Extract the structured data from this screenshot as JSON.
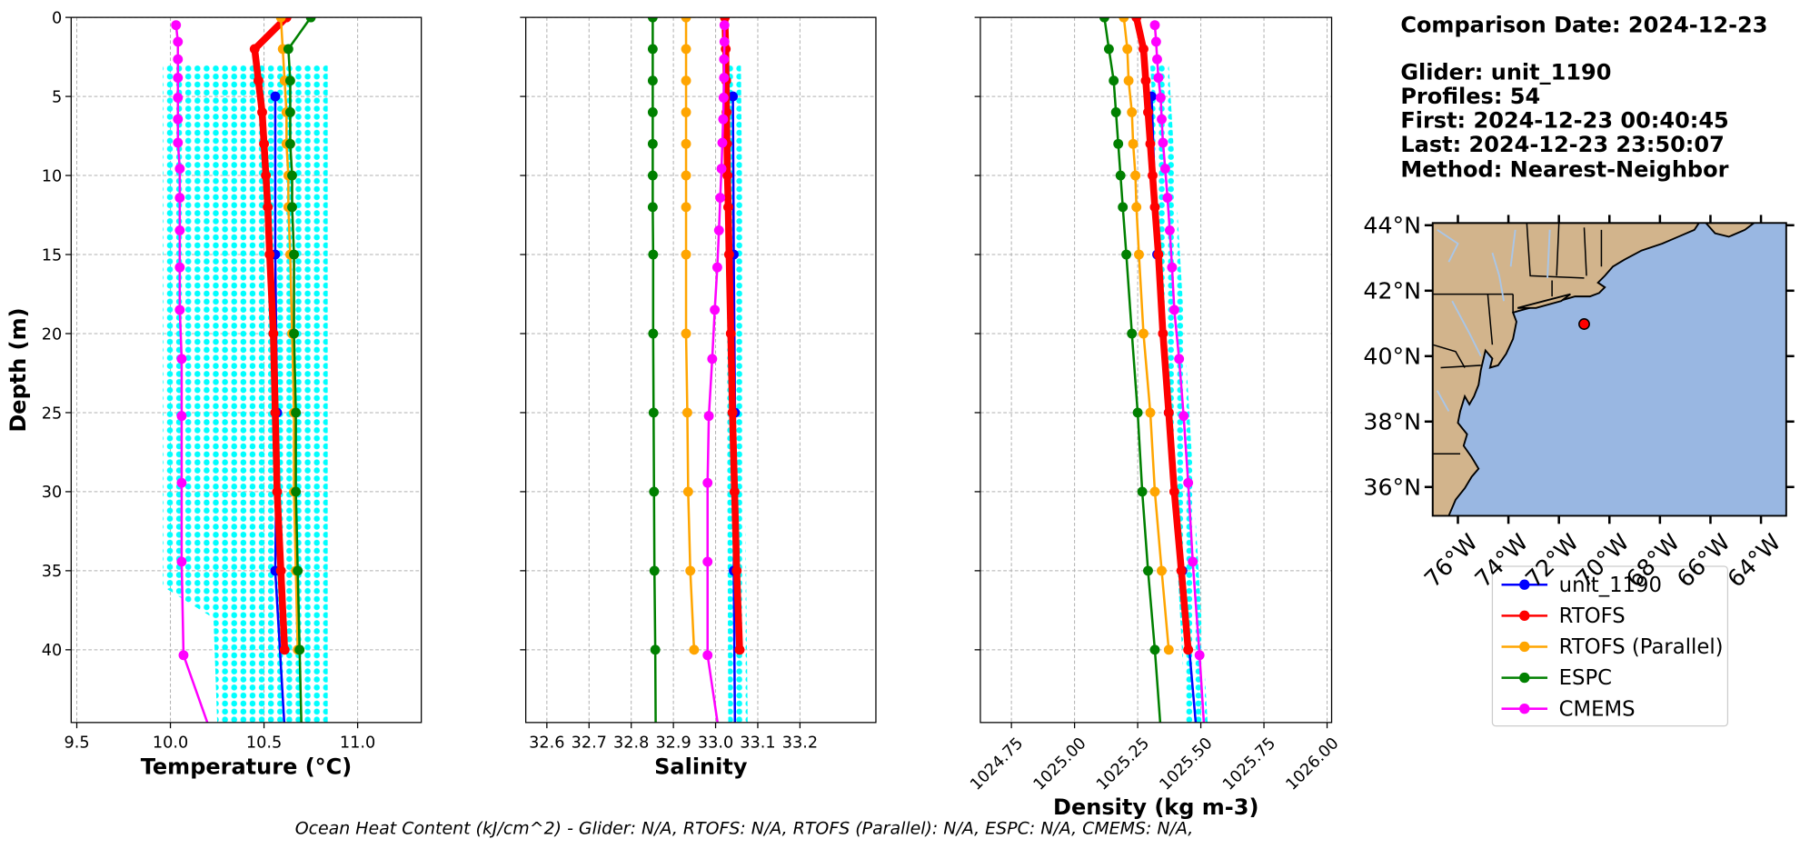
{
  "chart_data": [
    {
      "type": "line",
      "xlabel": "Temperature (°C)",
      "ylabel": "Depth (m)",
      "ytick_labels": true,
      "invert_y": true,
      "grid": true,
      "xlim": [
        9.47,
        11.34
      ],
      "xticks": [
        9.5,
        {
          "value": 10,
          "label": "10.0"
        },
        10.5,
        {
          "value": 11,
          "label": "11.0"
        }
      ],
      "ylim": [
        0,
        44.6
      ],
      "yticks": [
        0,
        5,
        10,
        15,
        20,
        25,
        30,
        35,
        40
      ],
      "cloud": {
        "color": "#00ffff",
        "depth": [
          3,
          36,
          38,
          44.6
        ],
        "min": [
          9.96,
          9.96,
          10.23,
          10.25
        ],
        "max": [
          10.84,
          10.84,
          10.84,
          10.84
        ]
      },
      "series": [
        {
          "name": "unit_1190",
          "color": "#0000ff",
          "linewidth": 2,
          "depth": [
            5,
            15,
            25,
            35,
            45
          ],
          "values": [
            10.56,
            10.56,
            10.57,
            10.56,
            10.61
          ]
        },
        {
          "name": "RTOFS",
          "color": "#ff0000",
          "linewidth": 6,
          "depth": [
            0,
            2,
            4,
            6,
            8,
            10,
            12,
            15,
            20,
            25,
            30,
            35,
            40
          ],
          "values": [
            10.62,
            10.45,
            10.47,
            10.49,
            10.5,
            10.51,
            10.52,
            10.53,
            10.55,
            10.56,
            10.57,
            10.59,
            10.61
          ]
        },
        {
          "name": "RTOFS (Parallel)",
          "color": "#ffa500",
          "linewidth": 2,
          "depth": [
            0,
            2,
            4,
            6,
            8,
            10,
            12,
            15,
            20,
            25,
            30,
            35,
            40
          ],
          "values": [
            10.59,
            10.6,
            10.61,
            10.62,
            10.62,
            10.63,
            10.63,
            10.64,
            10.65,
            10.66,
            10.66,
            10.67,
            10.68
          ]
        },
        {
          "name": "ESPC",
          "color": "#008000",
          "linewidth": 2,
          "depth": [
            0,
            2,
            4,
            6,
            8,
            10,
            12,
            15,
            20,
            25,
            30,
            35,
            40,
            45
          ],
          "values": [
            10.75,
            10.63,
            10.64,
            10.64,
            10.64,
            10.65,
            10.65,
            10.66,
            10.66,
            10.67,
            10.67,
            10.68,
            10.69,
            10.7
          ]
        },
        {
          "name": "CMEMS",
          "color": "#ff00ff",
          "linewidth": 2,
          "depth": [
            0.49,
            1.54,
            2.65,
            3.82,
            5.08,
            6.44,
            7.93,
            9.57,
            11.41,
            13.47,
            15.81,
            18.5,
            21.6,
            25.21,
            29.44,
            34.43,
            40.34,
            47.37
          ],
          "values": [
            10.03,
            10.04,
            10.04,
            10.04,
            10.04,
            10.04,
            10.04,
            10.05,
            10.05,
            10.05,
            10.05,
            10.05,
            10.06,
            10.06,
            10.06,
            10.06,
            10.07,
            10.28
          ]
        }
      ]
    },
    {
      "type": "line",
      "xlabel": "Salinity",
      "ytick_labels": false,
      "invert_y": true,
      "grid": true,
      "xlim": [
        32.55,
        33.38
      ],
      "xticks": [
        32.6,
        32.7,
        32.8,
        32.9,
        {
          "value": 33,
          "label": "33.0"
        },
        33.1,
        33.2
      ],
      "ylim": [
        0,
        44.6
      ],
      "yticks": [
        0,
        5,
        10,
        15,
        20,
        25,
        30,
        35,
        40
      ],
      "cloud": {
        "color": "#00ffff",
        "depth": [
          3,
          44.6
        ],
        "min": [
          33.024,
          33.03
        ],
        "max": [
          33.06,
          33.076
        ]
      },
      "series": [
        {
          "name": "unit_1190",
          "color": "#0000ff",
          "linewidth": 2,
          "depth": [
            5,
            15,
            25,
            35,
            45
          ],
          "values": [
            33.041,
            33.043,
            33.046,
            33.043,
            33.046
          ]
        },
        {
          "name": "RTOFS",
          "color": "#ff0000",
          "linewidth": 6,
          "depth": [
            0,
            2,
            4,
            6,
            8,
            10,
            12,
            15,
            20,
            25,
            30,
            35,
            40
          ],
          "values": [
            33.022,
            33.024,
            33.025,
            33.026,
            33.027,
            33.028,
            33.03,
            33.032,
            33.036,
            33.04,
            33.045,
            33.05,
            33.057
          ]
        },
        {
          "name": "RTOFS (Parallel)",
          "color": "#ffa500",
          "linewidth": 2,
          "depth": [
            0,
            2,
            4,
            6,
            8,
            10,
            12,
            15,
            20,
            25,
            30,
            35,
            40
          ],
          "values": [
            32.93,
            32.93,
            32.93,
            32.93,
            32.93,
            32.93,
            32.93,
            32.93,
            32.93,
            32.933,
            32.935,
            32.94,
            32.949
          ]
        },
        {
          "name": "ESPC",
          "color": "#008000",
          "linewidth": 2,
          "depth": [
            0,
            2,
            4,
            6,
            8,
            10,
            12,
            15,
            20,
            25,
            30,
            35,
            40,
            45
          ],
          "values": [
            32.851,
            32.851,
            32.851,
            32.851,
            32.851,
            32.851,
            32.851,
            32.852,
            32.852,
            32.853,
            32.854,
            32.855,
            32.857,
            32.858
          ]
        },
        {
          "name": "CMEMS",
          "color": "#ff00ff",
          "linewidth": 2,
          "depth": [
            0.49,
            1.54,
            2.65,
            3.82,
            5.08,
            6.44,
            7.93,
            9.57,
            11.41,
            13.47,
            15.81,
            18.5,
            21.6,
            25.21,
            29.44,
            34.43,
            40.34,
            47.37
          ],
          "values": [
            33.021,
            33.021,
            33.02,
            33.02,
            33.019,
            33.018,
            33.016,
            33.014,
            33.011,
            33.008,
            33.004,
            32.998,
            32.992,
            32.984,
            32.981,
            32.981,
            32.981,
            33.02
          ]
        }
      ]
    },
    {
      "type": "line",
      "xlabel": "Density (kg m-3)",
      "ytick_labels": false,
      "invert_y": true,
      "grid": true,
      "xtick_rotation": 45,
      "xlim": [
        1024.627,
        1026.018
      ],
      "xticks": [
        1024.75,
        {
          "value": 1025,
          "label": "1025.00"
        },
        1025.25,
        {
          "value": 1025.5,
          "label": "1025.50"
        },
        1025.75,
        {
          "value": 1026,
          "label": "1026.00"
        }
      ],
      "ylim": [
        0,
        44.6
      ],
      "yticks": [
        0,
        5,
        10,
        15,
        20,
        25,
        30,
        35,
        40
      ],
      "cloud": {
        "color": "#00ffff",
        "depth": [
          3,
          44.6
        ],
        "min": [
          1025.3,
          1025.441
        ],
        "max": [
          1025.373,
          1025.527
        ]
      },
      "series": [
        {
          "name": "unit_1190",
          "color": "#0000ff",
          "linewidth": 2,
          "depth": [
            5,
            15,
            25,
            35,
            45
          ],
          "values": [
            1025.305,
            1025.327,
            1025.373,
            1025.427,
            1025.482
          ]
        },
        {
          "name": "RTOFS",
          "color": "#ff0000",
          "linewidth": 6,
          "depth": [
            0,
            2,
            4,
            6,
            8,
            10,
            12,
            15,
            20,
            25,
            30,
            35,
            40
          ],
          "values": [
            1025.245,
            1025.273,
            1025.282,
            1025.291,
            1025.3,
            1025.309,
            1025.318,
            1025.332,
            1025.35,
            1025.373,
            1025.395,
            1025.423,
            1025.45
          ]
        },
        {
          "name": "RTOFS (Parallel)",
          "color": "#ffa500",
          "linewidth": 2,
          "depth": [
            0,
            2,
            4,
            6,
            8,
            10,
            12,
            15,
            20,
            25,
            30,
            35,
            40
          ],
          "values": [
            1025.195,
            1025.209,
            1025.214,
            1025.227,
            1025.232,
            1025.241,
            1025.245,
            1025.255,
            1025.273,
            1025.3,
            1025.318,
            1025.345,
            1025.373
          ]
        },
        {
          "name": "ESPC",
          "color": "#008000",
          "linewidth": 2,
          "depth": [
            0,
            2,
            4,
            6,
            8,
            10,
            12,
            15,
            20,
            25,
            30,
            35,
            40,
            45
          ],
          "values": [
            1025.118,
            1025.136,
            1025.155,
            1025.164,
            1025.173,
            1025.182,
            1025.191,
            1025.205,
            1025.227,
            1025.25,
            1025.268,
            1025.291,
            1025.318,
            1025.341
          ]
        },
        {
          "name": "CMEMS",
          "color": "#ff00ff",
          "linewidth": 2,
          "depth": [
            0.49,
            1.54,
            2.65,
            3.82,
            5.08,
            6.44,
            7.93,
            9.57,
            11.41,
            13.47,
            15.81,
            18.5,
            21.6,
            25.21,
            29.44,
            34.43,
            40.34,
            47.37
          ],
          "values": [
            1025.318,
            1025.323,
            1025.327,
            1025.332,
            1025.341,
            1025.345,
            1025.35,
            1025.359,
            1025.368,
            1025.377,
            1025.386,
            1025.395,
            1025.414,
            1025.432,
            1025.45,
            1025.468,
            1025.495,
            1025.523
          ]
        }
      ]
    },
    {
      "type": "map",
      "xlim": [
        -77,
        -63
      ],
      "ylim": [
        35.12,
        44.07
      ],
      "xticks": [
        {
          "value": -76,
          "label": "76°W"
        },
        {
          "value": -74,
          "label": "74°W"
        },
        {
          "value": -72,
          "label": "72°W"
        },
        {
          "value": -70,
          "label": "70°W"
        },
        {
          "value": -68,
          "label": "68°W"
        },
        {
          "value": -66,
          "label": "66°W"
        },
        {
          "value": -64,
          "label": "64°W"
        }
      ],
      "yticks": [
        {
          "value": 36,
          "label": "36°N"
        },
        {
          "value": 38,
          "label": "38°N"
        },
        {
          "value": 40,
          "label": "40°N"
        },
        {
          "value": 42,
          "label": "42°N"
        },
        {
          "value": 44,
          "label": "44°N"
        }
      ],
      "marker": {
        "lon": -71.0,
        "lat": 40.98,
        "color": "#ff0000"
      }
    }
  ],
  "info": [
    "Comparison Date: 2024-12-23",
    "Glider: unit_1190",
    "Profiles: 54",
    "First: 2024-12-23 00:40:45",
    "Last: 2024-12-23 23:50:07",
    "Method: Nearest-Neighbor"
  ],
  "footer": "Ocean Heat Content (kJ/cm^2) - Glider: N/A,  RTOFS: N/A,  RTOFS (Parallel): N/A,  ESPC: N/A,  CMEMS: N/A,"
}
